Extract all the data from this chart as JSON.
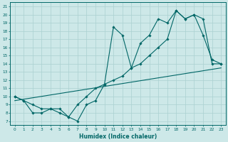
{
  "xlabel": "Humidex (Indice chaleur)",
  "bg_color": "#cde8e8",
  "line_color": "#006666",
  "grid_color": "#aad0d0",
  "xlim": [
    -0.5,
    23.5
  ],
  "ylim": [
    6.5,
    21.5
  ],
  "xticks": [
    0,
    1,
    2,
    3,
    4,
    5,
    6,
    7,
    8,
    9,
    10,
    11,
    12,
    13,
    14,
    15,
    16,
    17,
    18,
    19,
    20,
    21,
    22,
    23
  ],
  "yticks": [
    7,
    8,
    9,
    10,
    11,
    12,
    13,
    14,
    15,
    16,
    17,
    18,
    19,
    20,
    21
  ],
  "line1_x": [
    0,
    1,
    2,
    3,
    4,
    5,
    6,
    7,
    8,
    9,
    10,
    11,
    12,
    13,
    14,
    15,
    16,
    17,
    18,
    19,
    20,
    21,
    22,
    23
  ],
  "line1_y": [
    10.0,
    9.5,
    9.0,
    8.5,
    8.5,
    8.0,
    7.5,
    9.0,
    10.0,
    11.0,
    11.5,
    12.0,
    12.5,
    13.5,
    14.0,
    15.0,
    16.0,
    17.0,
    20.5,
    19.5,
    20.0,
    19.5,
    14.0,
    14.0
  ],
  "line2_x": [
    0,
    1,
    2,
    3,
    4,
    5,
    6,
    7,
    8,
    9,
    10,
    11,
    12,
    13,
    14,
    15,
    16,
    17,
    18,
    19,
    20,
    21,
    22,
    23
  ],
  "line2_y": [
    10.0,
    9.5,
    8.0,
    8.0,
    8.5,
    8.5,
    7.5,
    7.0,
    9.0,
    9.5,
    11.5,
    18.5,
    17.5,
    13.5,
    16.5,
    17.5,
    19.5,
    19.0,
    20.5,
    19.5,
    20.0,
    17.5,
    14.5,
    14.0
  ],
  "line3_x": [
    0,
    23
  ],
  "line3_y": [
    9.5,
    13.5
  ]
}
